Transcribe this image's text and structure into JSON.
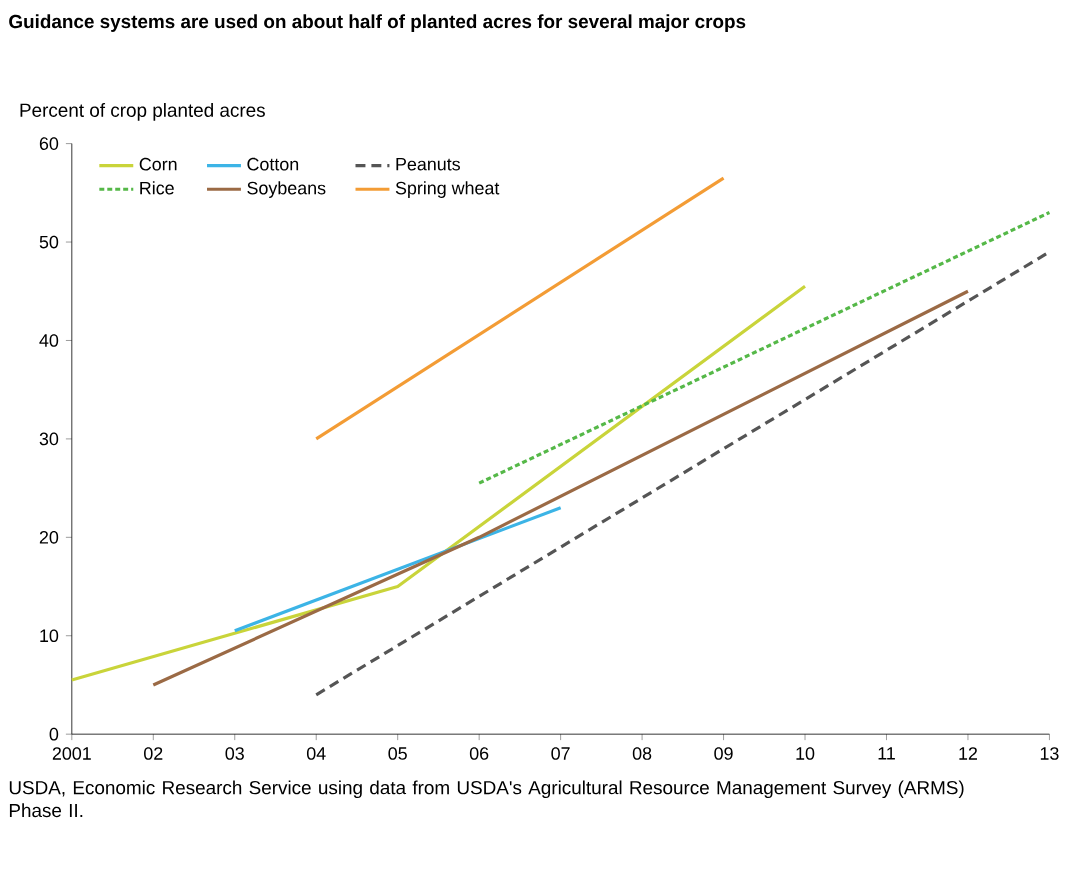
{
  "chart_data": {
    "type": "line",
    "title": "Guidance systems are used on about half of planted acres for several major crops",
    "ylabel": "Percent of crop planted acres",
    "xlim": [
      2001,
      2013
    ],
    "ylim": [
      0,
      60
    ],
    "xticks": [
      2001,
      {
        "value": 2002,
        "label": "02"
      },
      {
        "value": 2003,
        "label": "03"
      },
      {
        "value": 2004,
        "label": "04"
      },
      {
        "value": 2005,
        "label": "05"
      },
      {
        "value": 2006,
        "label": "06"
      },
      {
        "value": 2007,
        "label": "07"
      },
      {
        "value": 2008,
        "label": "08"
      },
      {
        "value": 2009,
        "label": "09"
      },
      {
        "value": 2010,
        "label": "10"
      },
      {
        "value": 2011,
        "label": "11"
      },
      {
        "value": 2012,
        "label": "12"
      },
      {
        "value": 2013,
        "label": "13"
      }
    ],
    "yticks": [
      0,
      10,
      20,
      30,
      40,
      50,
      60
    ],
    "grid": false,
    "legend": "top left",
    "marker": "none",
    "series": [
      {
        "name": "Corn",
        "color": "#c9d43a",
        "x": [
          2001,
          2005,
          2010
        ],
        "values": [
          5.5,
          15,
          45.5
        ],
        "line_style": "solid"
      },
      {
        "name": "Cotton",
        "color": "#3cb4e6",
        "x": [
          2003,
          2007
        ],
        "values": [
          10.5,
          23
        ],
        "line_style": "solid"
      },
      {
        "name": "Peanuts",
        "color": "#555555",
        "x": [
          2004,
          2013
        ],
        "values": [
          4,
          49
        ],
        "line_style": "dashed"
      },
      {
        "name": "Rice",
        "color": "#55b848",
        "x": [
          2006,
          2013
        ],
        "values": [
          25.5,
          53
        ],
        "line_style": "dotted"
      },
      {
        "name": "Soybeans",
        "color": "#9b6a45",
        "x": [
          2002,
          2006,
          2012
        ],
        "values": [
          5,
          20,
          45
        ],
        "line_style": "solid"
      },
      {
        "name": "Spring wheat",
        "color": "#f39c35",
        "x": [
          2004,
          2009
        ],
        "values": [
          30,
          56.5
        ],
        "line_style": "solid"
      }
    ],
    "annotations": [
      "USDA, Economic Research Service using data from USDA's Agricultural Resource Management Survey (ARMS) Phase II."
    ]
  }
}
